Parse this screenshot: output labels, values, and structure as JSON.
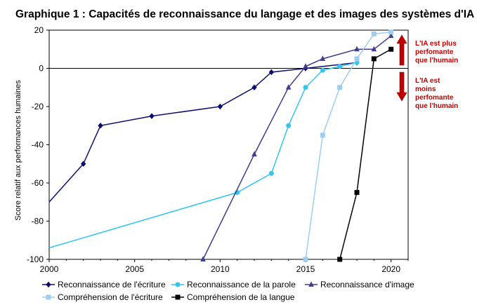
{
  "title": "Graphique 1 : Capacités de reconnaissance du langage et des images des systèmes d'IA",
  "chart_data": {
    "type": "line",
    "title": "Graphique 1 : Capacités de reconnaissance du langage et des images des systèmes d'IA",
    "xlabel": "",
    "ylabel": "Score relatif aux performances humaines",
    "xlim": [
      2000,
      2021
    ],
    "ylim": [
      -100,
      20
    ],
    "xticks": [
      2000,
      2005,
      2010,
      2015,
      2020
    ],
    "yticks": [
      20,
      0,
      -20,
      -40,
      -60,
      -80,
      -100
    ],
    "grid": false,
    "legend_position": "bottom",
    "annotations": {
      "up": [
        "L'IA est plus",
        "perfomante",
        "que l'humain"
      ],
      "down": [
        "L'IA est",
        "moins",
        "perfomante",
        "que l'humain"
      ]
    },
    "series": [
      {
        "name": "Reconnaissance de l'écriture",
        "color": "#0d0f6b",
        "marker": "diamond",
        "x": [
          2000,
          2002,
          2003,
          2006,
          2010,
          2012,
          2013,
          2015,
          2018
        ],
        "y": [
          -70,
          -50,
          -30,
          -25,
          -20,
          -10,
          -2,
          0,
          3
        ]
      },
      {
        "name": "Reconnaissance de la parole",
        "color": "#33c5ef",
        "marker": "circle",
        "x": [
          2000,
          2011,
          2013,
          2014,
          2015,
          2016,
          2017,
          2018
        ],
        "y": [
          -94,
          -65,
          -55,
          -30,
          -10,
          -1,
          1,
          3
        ]
      },
      {
        "name": "Reconnaissance d'image",
        "color": "#423d8f",
        "marker": "triangle",
        "x": [
          2009,
          2012,
          2014,
          2015,
          2016,
          2018,
          2019,
          2020
        ],
        "y": [
          -100,
          -45,
          -10,
          1,
          5,
          10,
          10,
          17
        ]
      },
      {
        "name": "Compréhension de l'écriture",
        "color": "#9fcdf2",
        "marker": "square",
        "x": [
          2015,
          2016,
          2017,
          2018,
          2019,
          2020
        ],
        "y": [
          -100,
          -35,
          -10,
          5,
          18,
          19
        ]
      },
      {
        "name": "Compréhension de la langue",
        "color": "#000000",
        "marker": "square",
        "x": [
          2017,
          2018,
          2019,
          2020
        ],
        "y": [
          -100,
          -65,
          5,
          10
        ]
      }
    ]
  }
}
